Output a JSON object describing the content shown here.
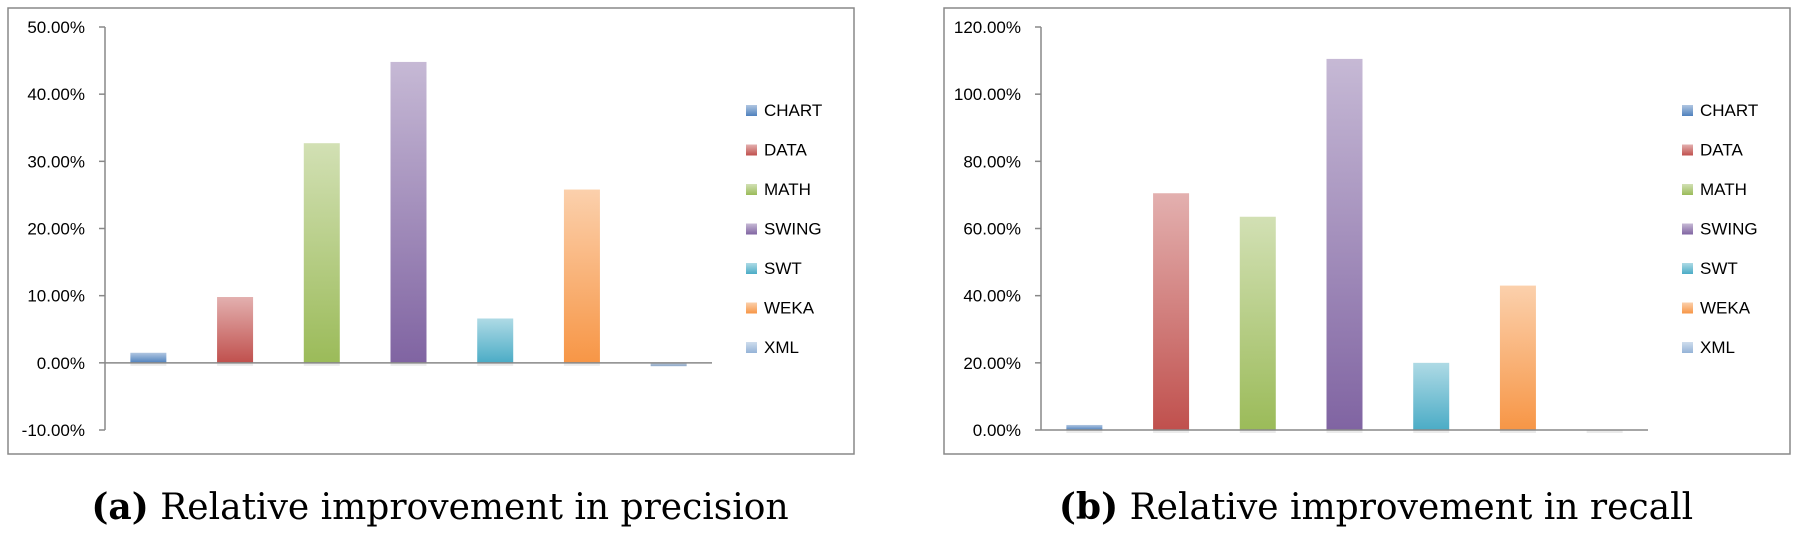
{
  "chart_data": [
    {
      "type": "bar",
      "categories": [
        "CHART",
        "DATA",
        "MATH",
        "SWING",
        "SWT",
        "WEKA",
        "XML"
      ],
      "values": [
        1.5,
        9.8,
        32.7,
        44.8,
        6.6,
        25.8,
        -0.5
      ],
      "unit": "%",
      "ylim": [
        -10,
        50
      ],
      "yticks": [
        "50.00%",
        "40.00%",
        "30.00%",
        "20.00%",
        "10.00%",
        "0.00%",
        "-10.00%"
      ],
      "ytick_values": [
        50,
        40,
        30,
        20,
        10,
        0,
        -10
      ],
      "legend": [
        "CHART",
        "DATA",
        "MATH",
        "SWING",
        "SWT",
        "WEKA",
        "XML"
      ],
      "legend_position": "right",
      "grid": false,
      "caption_label": "(a)",
      "caption_text": "Relative improvement in precision"
    },
    {
      "type": "bar",
      "categories": [
        "CHART",
        "DATA",
        "MATH",
        "SWING",
        "SWT",
        "WEKA",
        "XML"
      ],
      "values": [
        1.5,
        70.5,
        63.5,
        110.5,
        20.0,
        43.0,
        0.0
      ],
      "unit": "%",
      "ylim": [
        0,
        120
      ],
      "yticks": [
        "120.00%",
        "100.00%",
        "80.00%",
        "60.00%",
        "40.00%",
        "20.00%",
        "0.00%"
      ],
      "ytick_values": [
        120,
        100,
        80,
        60,
        40,
        20,
        0
      ],
      "legend": [
        "CHART",
        "DATA",
        "MATH",
        "SWING",
        "SWT",
        "WEKA",
        "XML"
      ],
      "legend_position": "right",
      "grid": false,
      "caption_label": "(b)",
      "caption_text": "Relative improvement in recall"
    }
  ],
  "colors": {
    "CHART": "#4f81bd",
    "DATA": "#c0504d",
    "MATH": "#9bbb59",
    "SWING": "#8064a2",
    "SWT": "#4bacc6",
    "WEKA": "#f79646",
    "XML": "#95b3d7"
  }
}
